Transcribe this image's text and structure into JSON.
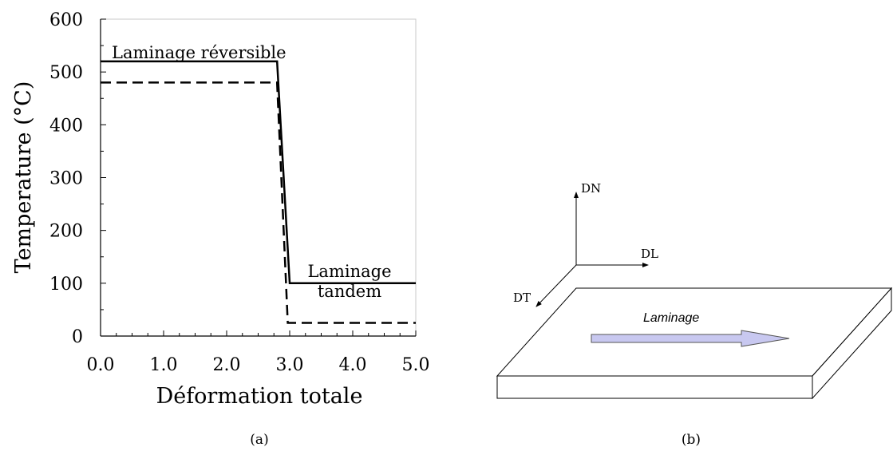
{
  "chart_data": {
    "type": "line",
    "xlabel": "Déformation totale",
    "ylabel": "Temperature (°C)",
    "xlim": [
      0,
      5
    ],
    "ylim": [
      0,
      600
    ],
    "x_ticks": [
      "0.0",
      "1.0",
      "2.0",
      "3.0",
      "4.0",
      "5.0"
    ],
    "x_tick_values": [
      0,
      1,
      2,
      3,
      4,
      5
    ],
    "y_ticks": [
      "0",
      "100",
      "200",
      "300",
      "400",
      "500",
      "600"
    ],
    "y_tick_values": [
      0,
      100,
      200,
      300,
      400,
      500,
      600
    ],
    "y_minor_tick_values": [
      50,
      150,
      250,
      350,
      450,
      550
    ],
    "grid": false,
    "series": [
      {
        "style": "solid",
        "color": "#000000",
        "x": [
          0,
          2.8,
          3.0,
          5.0
        ],
        "y": [
          520,
          520,
          100,
          100
        ]
      },
      {
        "style": "dashed",
        "color": "#000000",
        "x": [
          0,
          2.8,
          2.97,
          5.0
        ],
        "y": [
          480,
          480,
          25,
          25
        ]
      }
    ],
    "annotations": {
      "reversible": "Laminage réversible",
      "tandem_line1": "Laminage",
      "tandem_line2": "tandem"
    },
    "caption": "(a)"
  },
  "diagram": {
    "axis_dn": "DN",
    "axis_dl": "DL",
    "axis_dt": "DT",
    "arrow_label": "Laminage",
    "arrow_color": "#c8c8f0",
    "caption": "(b)"
  }
}
